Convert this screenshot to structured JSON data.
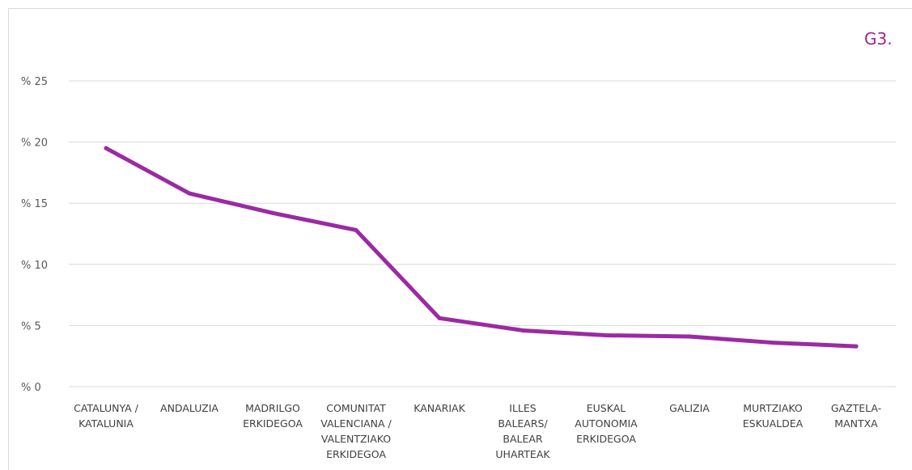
{
  "chart_data": {
    "type": "line",
    "corner_label": "G3.",
    "categories": [
      [
        "CATALUNYA /",
        "KATALUNIA"
      ],
      [
        "ANDALUZIA"
      ],
      [
        "MADRILGO",
        "ERKIDEGOA"
      ],
      [
        "COMUNITAT",
        "VALENCIANA /",
        "VALENTZIAKO",
        "ERKIDEGOA"
      ],
      [
        "KANARIAK"
      ],
      [
        "ILLES",
        "BALEARS/",
        "BALEAR",
        "UHARTEAK"
      ],
      [
        "EUSKAL",
        "AUTONOMIA",
        "ERKIDEGOA"
      ],
      [
        "GALIZIA"
      ],
      [
        "MURTZIAKO",
        "ESKUALDEA"
      ],
      [
        "GAZTELA-",
        "MANTXA"
      ]
    ],
    "series": [
      {
        "values": [
          19.5,
          15.8,
          14.2,
          12.8,
          5.6,
          4.6,
          4.2,
          4.1,
          3.6,
          3.3
        ]
      }
    ],
    "y_ticks": [
      "% 0",
      "% 5",
      "% 10",
      "% 15",
      "% 20",
      "% 25"
    ],
    "y_tick_values": [
      0,
      5,
      10,
      15,
      20,
      25
    ],
    "ylim": [
      0,
      25
    ],
    "grid": true,
    "legend": "none",
    "colors": {
      "line": "#9b2aa3",
      "accent": "#a0258f"
    }
  }
}
